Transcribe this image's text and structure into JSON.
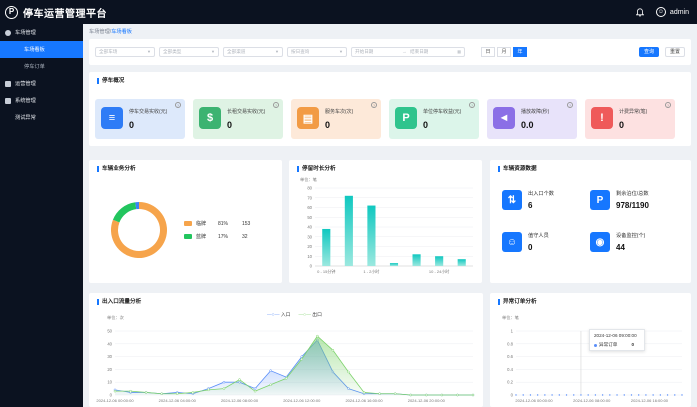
{
  "app": {
    "title": "停车运营管理平台",
    "logo_letter": "P",
    "user": "admin"
  },
  "sidebar": {
    "groups": [
      {
        "label": "车场管理",
        "items": [
          {
            "label": "车场看板",
            "active": true
          },
          {
            "label": "停车订单",
            "active": false
          }
        ]
      },
      {
        "label": "运营管理",
        "items": []
      },
      {
        "label": "系统管理",
        "items": []
      },
      {
        "label": "测试异常",
        "items": []
      }
    ]
  },
  "breadcrumb": {
    "parent": "车场管理",
    "sep": "/",
    "current": "车场看板"
  },
  "filters": {
    "selects": [
      "全部车场",
      "全部类型",
      "全部渠道",
      "按日查询"
    ],
    "date_start": "开始日期",
    "date_sep": "→",
    "date_end": "结束日期",
    "period": [
      "日",
      "月",
      "年"
    ],
    "active_period": "年",
    "search": "查询",
    "reset": "重置"
  },
  "overview": {
    "title": "停车概况",
    "cards": [
      {
        "label": "停车交易实收(元)",
        "value": "0",
        "bg": "#dde9fb",
        "icon_bg": "#2e7cf6",
        "icon": "database-icon",
        "glyph": "≡"
      },
      {
        "label": "长租交易实收(元)",
        "value": "0",
        "bg": "#dff3e4",
        "icon_bg": "#3cb371",
        "icon": "money-bag-icon",
        "glyph": "$"
      },
      {
        "label": "服务车次(次)",
        "value": "0",
        "bg": "#fde9d9",
        "icon_bg": "#f29b45",
        "icon": "car-icon",
        "glyph": "▤"
      },
      {
        "label": "单位停车收益(元)",
        "value": "0",
        "bg": "#dcf5ea",
        "icon_bg": "#2fc48d",
        "icon": "parking-icon",
        "glyph": "P"
      },
      {
        "label": "播放故障(秒)",
        "value": "0.0",
        "bg": "#e8e3fa",
        "icon_bg": "#8b6fe6",
        "icon": "mute-icon",
        "glyph": "◄"
      },
      {
        "label": "计费异常(笔)",
        "value": "0",
        "bg": "#fde1e1",
        "icon_bg": "#ef5a5a",
        "icon": "warning-icon",
        "glyph": "!"
      }
    ]
  },
  "biz": {
    "title": "车辆业务分析",
    "rows": [
      {
        "name": "临牌",
        "pct": "81%",
        "count": "153",
        "color": "#f6a44b",
        "value": 153
      },
      {
        "name": "蓝牌",
        "pct": "17%",
        "count": "32",
        "color": "#22c55e",
        "value": 32
      }
    ],
    "other": {
      "color": "#3b82f6",
      "value": 4
    }
  },
  "duration": {
    "title": "停留时长分析",
    "unit": "单位：笔",
    "y_ticks": [
      "0",
      "10",
      "20",
      "30",
      "40",
      "50",
      "60",
      "70",
      "80"
    ],
    "x_labels": [
      "0 - 15分钟",
      "1 - 2小时",
      "10 - 24小时"
    ]
  },
  "resources": {
    "title": "车辆资源数据",
    "items": [
      {
        "label": "出入口个数",
        "value": "6",
        "icon": "gate-icon",
        "glyph": "⇅"
      },
      {
        "label": "剩余泊位/总数",
        "value": "978/1190",
        "icon": "parking-icon",
        "glyph": "P"
      },
      {
        "label": "值守人员",
        "value": "0",
        "icon": "person-icon",
        "glyph": "☺"
      },
      {
        "label": "设备监控(个)",
        "value": "44",
        "icon": "camera-icon",
        "glyph": "◉"
      }
    ]
  },
  "flow": {
    "title": "出入口流量分析",
    "unit": "单位：次",
    "legend": [
      {
        "name": "入口",
        "color": "#5b8ff9"
      },
      {
        "name": "出口",
        "color": "#7ed36c"
      }
    ],
    "y_ticks": [
      "0",
      "10",
      "20",
      "30",
      "40",
      "50"
    ],
    "x_labels": [
      "2024-12-06 00:00:00",
      "2024-12-06 04:00:00",
      "2024-12-06 08:00:00",
      "2024-12-06 12:00:00",
      "2024-12-06 16:00:00",
      "2024-12-06 20:00:00"
    ]
  },
  "abnormal": {
    "title": "异常订单分析",
    "unit": "单位：笔",
    "y_ticks": [
      "0",
      "0.2",
      "0.4",
      "0.6",
      "0.8",
      "1"
    ],
    "x_labels": [
      "2024-12-06 00:00:00",
      "2024-12-06 08:00:00",
      "2024-12-06 16:00:00"
    ],
    "tooltip_time": "2024-12-06 09:00:00",
    "tooltip_name": "异常订单",
    "tooltip_value": "0"
  },
  "chart_data": [
    {
      "type": "pie",
      "title": "车辆业务分析",
      "categories": [
        "临牌",
        "蓝牌",
        "其他"
      ],
      "values": [
        153,
        32,
        4
      ]
    },
    {
      "type": "bar",
      "title": "停留时长分析",
      "ylabel": "单位：笔",
      "ylim": [
        0,
        80
      ],
      "categories": [
        "0 - 15分钟",
        "",
        "1 - 2小时",
        "",
        "",
        "10 - 24小时",
        ""
      ],
      "values": [
        38,
        72,
        62,
        3,
        12,
        10,
        7
      ]
    },
    {
      "type": "line",
      "title": "出入口流量分析",
      "ylabel": "单位：次",
      "ylim": [
        0,
        50
      ],
      "x": [
        "00",
        "01",
        "02",
        "03",
        "04",
        "05",
        "06",
        "07",
        "08",
        "09",
        "10",
        "11",
        "12",
        "13",
        "14",
        "15",
        "16",
        "17",
        "18",
        "19",
        "20",
        "21",
        "22",
        "23"
      ],
      "series": [
        {
          "name": "入口",
          "values": [
            4,
            2,
            2,
            1,
            2,
            1,
            5,
            10,
            10,
            5,
            19,
            14,
            30,
            43,
            18,
            5,
            1,
            1,
            1,
            0,
            0,
            0,
            0,
            0
          ]
        },
        {
          "name": "出口",
          "values": [
            3,
            3,
            2,
            1,
            1,
            2,
            4,
            5,
            12,
            3,
            8,
            13,
            28,
            46,
            35,
            18,
            2,
            1,
            1,
            0,
            0,
            0,
            0,
            0
          ]
        }
      ]
    },
    {
      "type": "line",
      "title": "异常订单分析",
      "ylabel": "单位：笔",
      "ylim": [
        0,
        1
      ],
      "series": [
        {
          "name": "异常订单",
          "values": [
            0,
            0,
            0,
            0,
            0,
            0,
            0,
            0,
            0,
            0,
            0,
            0,
            0,
            0,
            0,
            0,
            0,
            0,
            0,
            0,
            0,
            0,
            0,
            0
          ]
        }
      ]
    }
  ]
}
